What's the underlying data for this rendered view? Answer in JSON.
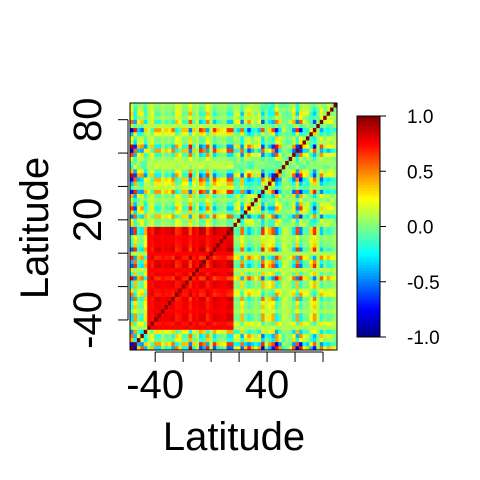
{
  "chart_data": {
    "type": "heatmap",
    "title": "",
    "xlabel": "Latitude",
    "ylabel": "Latitude",
    "x_tick_labels": [
      "-40",
      "40"
    ],
    "y_tick_labels": [
      "-40",
      "20",
      "80"
    ],
    "xlim": [
      -58,
      90
    ],
    "ylim": [
      -58,
      90
    ],
    "legend_position": "right",
    "colorbar": {
      "min": -1.0,
      "max": 1.0,
      "tick_labels": [
        "1.0",
        "0.5",
        "0.0",
        "-0.5",
        "-1.0"
      ],
      "tick_values": [
        1.0,
        0.5,
        0.0,
        -0.5,
        -1.0
      ],
      "colormap": [
        "#00007F",
        "#0000FF",
        "#007FFF",
        "#00FFFF",
        "#7FFF7F",
        "#FFFF00",
        "#FF7F00",
        "#FF0000",
        "#7F0000"
      ]
    },
    "grid": false,
    "note_values": "Correlation matrix between latitude bands; strong positive block roughly -45 to 15 on both axes."
  }
}
